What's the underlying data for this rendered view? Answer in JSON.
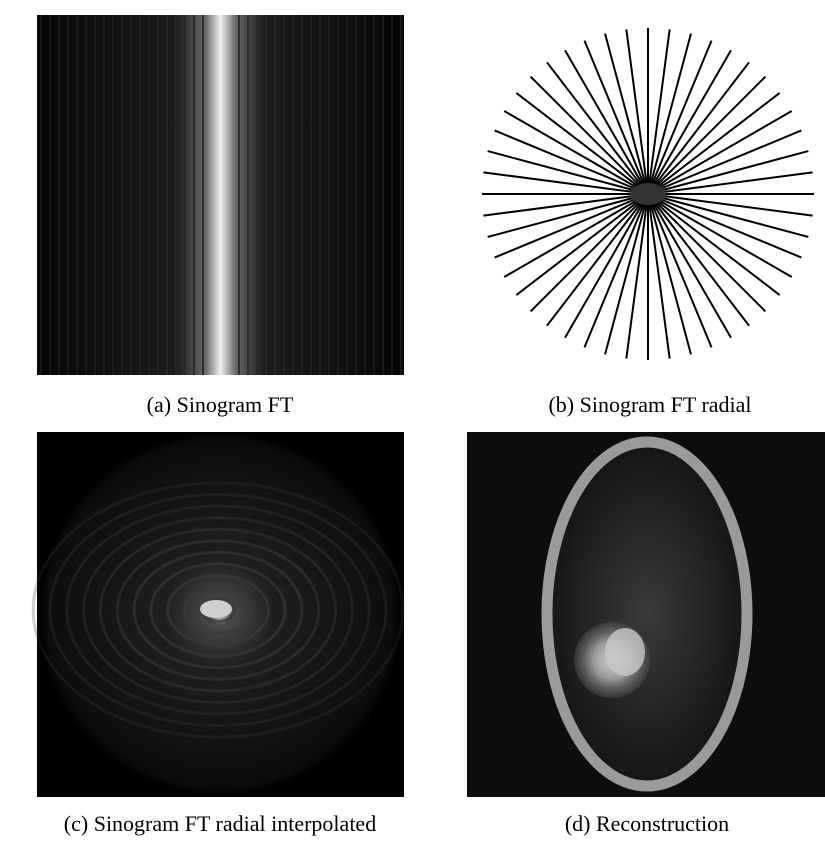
{
  "figure": {
    "panels": [
      {
        "caption": "(a) Sinogram FT"
      },
      {
        "caption": "(b) Sinogram FT radial"
      },
      {
        "caption": "(c) Sinogram FT radial interpolated"
      },
      {
        "caption": "(d) Reconstruction"
      }
    ]
  }
}
